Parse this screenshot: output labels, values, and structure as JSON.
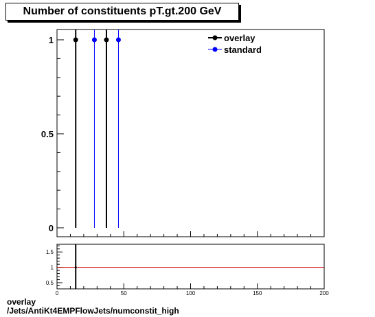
{
  "colors": {
    "overlay": "#000000",
    "standard": "#0000ff",
    "ratio_line": "#cc0000"
  },
  "caption": {
    "line1": "overlay",
    "line2": "/Jets/AntiKt4EMPFlowJets/numconstit_high"
  },
  "chart_data": [
    {
      "type": "scatter",
      "title": "Number of constituents pT.gt.200 GeV",
      "xlabel": "",
      "ylabel": "",
      "xlim": [
        0,
        200
      ],
      "ylim": [
        0,
        1.05
      ],
      "yticks": [
        0,
        0.5,
        1
      ],
      "ytick_labels": [
        "0",
        "0.5",
        "1"
      ],
      "legend": "top-right",
      "series": [
        {
          "name": "overlay",
          "points": [
            {
              "x": 14,
              "y": 1
            },
            {
              "x": 37,
              "y": 1
            }
          ]
        },
        {
          "name": "standard",
          "points": [
            {
              "x": 28,
              "y": 1
            },
            {
              "x": 46,
              "y": 1
            }
          ]
        }
      ]
    },
    {
      "type": "line",
      "title": "",
      "xlim": [
        0,
        200
      ],
      "ylim": [
        0.3,
        1.75
      ],
      "xticks": [
        0,
        50,
        100,
        150,
        200
      ],
      "xtick_labels": [
        "0",
        "50",
        "100",
        "150",
        "200"
      ],
      "yticks": [
        0.5,
        1,
        1.5
      ],
      "ytick_labels": [
        "0.5",
        "1",
        "1.5"
      ],
      "reference_line": 1,
      "ratio_marker": {
        "x": 14,
        "y": 1
      }
    }
  ]
}
